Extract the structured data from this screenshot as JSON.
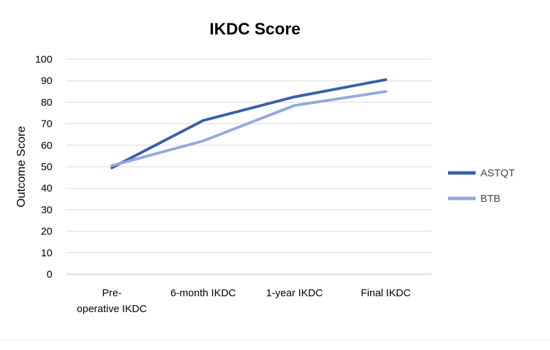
{
  "chart_data": {
    "type": "line",
    "title": "IKDC Score",
    "xlabel": "",
    "ylabel": "Outcome Score",
    "categories": [
      [
        "Pre-",
        "operative IKDC"
      ],
      [
        "6-month IKDC"
      ],
      [
        "1-year IKDC"
      ],
      [
        "Final IKDC"
      ]
    ],
    "ylim": [
      0,
      100
    ],
    "yticks": [
      0,
      10,
      20,
      30,
      40,
      50,
      60,
      70,
      80,
      90,
      100
    ],
    "grid": true,
    "legend_position": "right",
    "series": [
      {
        "name": "ASTQT",
        "values": [
          49.5,
          71.5,
          82.5,
          90.5
        ],
        "color": "#3a5fa8"
      },
      {
        "name": "BTB",
        "values": [
          50.5,
          62,
          78.5,
          85
        ],
        "color": "#94a8da"
      }
    ]
  }
}
